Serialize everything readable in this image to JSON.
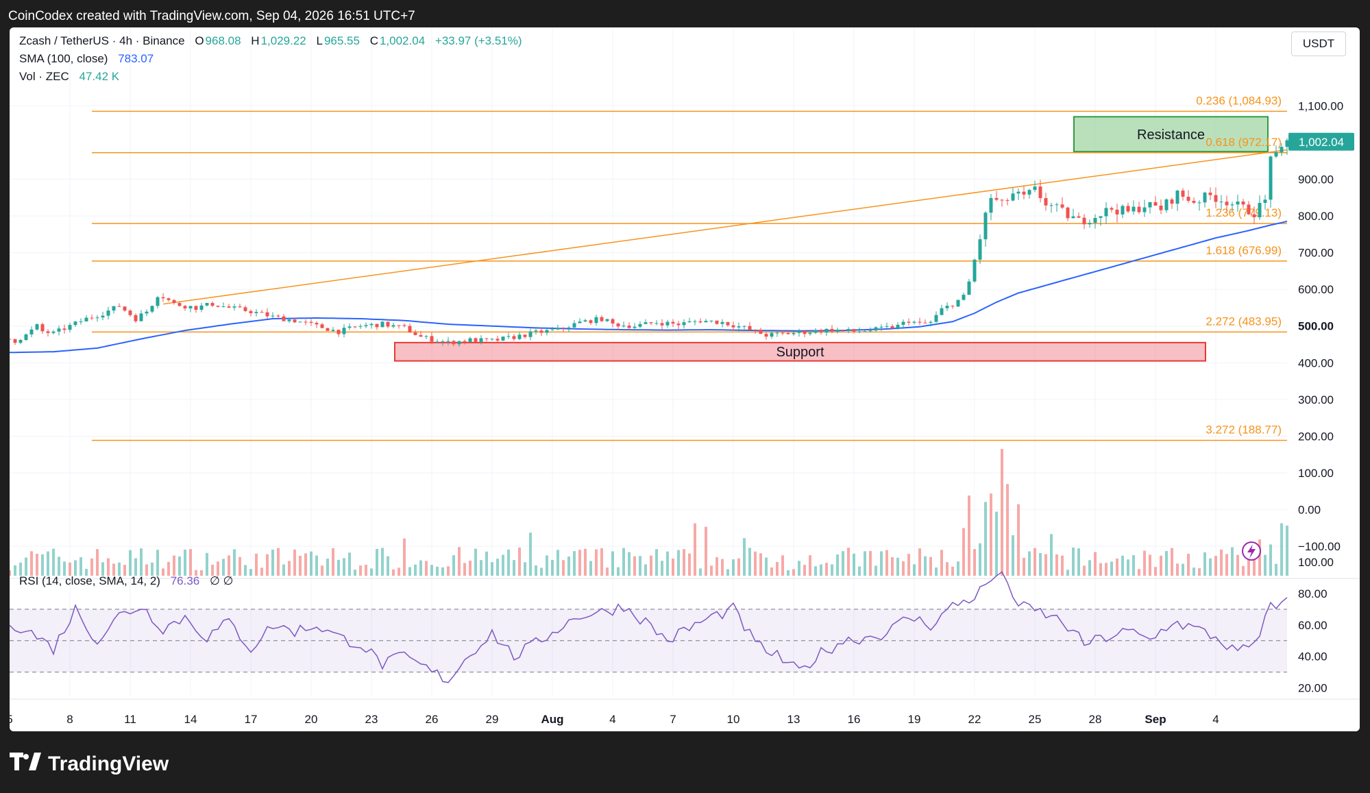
{
  "header": {
    "credit": "CoinCodex created with TradingView.com, Sep 04, 2026 16:51 UTC+7"
  },
  "legend": {
    "symbol": "Zcash / TetherUS · 4h · Binance",
    "open_label": "O",
    "open": "968.08",
    "high_label": "H",
    "high": "1,029.22",
    "low_label": "L",
    "low": "965.55",
    "close_label": "C",
    "close": "1,002.04",
    "change": "+33.97 (+3.51%)",
    "sma_label": "SMA (100, close)",
    "sma_value": "783.07",
    "vol_label": "Vol · ZEC",
    "vol_value": "47.42 K",
    "rsi_label": "RSI (14, close, SMA, 14, 2)",
    "rsi_value": "76.36",
    "rsi_extra": "∅ ∅"
  },
  "currency_button": "USDT",
  "footer": {
    "brand": "TradingView"
  },
  "colors": {
    "up": "#26a69a",
    "down": "#ef5350",
    "sma": "#2962ff",
    "fib": "#f7931a",
    "rsi": "#7e57c2",
    "support": "#f28b93",
    "resistance": "#81c784"
  },
  "chart_data": {
    "type": "candlestick",
    "title": "",
    "x_ticks": [
      "5",
      "8",
      "11",
      "14",
      "17",
      "20",
      "23",
      "26",
      "29",
      "Aug",
      "4",
      "7",
      "10",
      "13",
      "16",
      "19",
      "22",
      "25",
      "28",
      "Sep",
      "4"
    ],
    "y_ticks": [
      "1,100.00",
      "900.00",
      "800.00",
      "700.00",
      "600.00",
      "500.00",
      "400.00",
      "300.00",
      "200.00",
      "100.00",
      "0.00",
      "−100.00"
    ],
    "y_range": [
      -180,
      1220
    ],
    "last_price": "1,002.04",
    "price_path": [
      [
        0,
        465
      ],
      [
        1,
        460
      ],
      [
        3,
        475
      ],
      [
        5,
        500
      ],
      [
        6,
        485
      ],
      [
        8,
        480
      ],
      [
        11,
        500
      ],
      [
        14,
        520
      ],
      [
        17,
        535
      ],
      [
        20,
        555
      ],
      [
        23,
        520
      ],
      [
        24,
        530
      ],
      [
        25,
        540
      ],
      [
        26,
        560
      ],
      [
        27,
        585
      ],
      [
        28,
        580
      ],
      [
        30,
        560
      ],
      [
        34,
        550
      ],
      [
        37,
        560
      ],
      [
        40,
        550
      ],
      [
        44,
        540
      ],
      [
        48,
        525
      ],
      [
        52,
        515
      ],
      [
        56,
        500
      ],
      [
        60,
        485
      ],
      [
        64,
        500
      ],
      [
        68,
        505
      ],
      [
        72,
        495
      ],
      [
        75,
        470
      ],
      [
        80,
        455
      ],
      [
        84,
        462
      ],
      [
        88,
        460
      ],
      [
        92,
        470
      ],
      [
        96,
        482
      ],
      [
        100,
        490
      ],
      [
        104,
        510
      ],
      [
        108,
        520
      ],
      [
        110,
        505
      ],
      [
        114,
        500
      ],
      [
        118,
        510
      ],
      [
        122,
        505
      ],
      [
        126,
        515
      ],
      [
        130,
        510
      ],
      [
        134,
        495
      ],
      [
        138,
        475
      ],
      [
        142,
        480
      ],
      [
        146,
        485
      ],
      [
        150,
        490
      ],
      [
        154,
        485
      ],
      [
        158,
        490
      ],
      [
        162,
        500
      ],
      [
        164,
        515
      ],
      [
        166,
        505
      ],
      [
        168,
        510
      ],
      [
        170,
        545
      ],
      [
        172,
        560
      ],
      [
        174,
        580
      ],
      [
        175,
        620
      ],
      [
        176,
        680
      ],
      [
        177,
        740
      ],
      [
        178,
        800
      ],
      [
        179,
        850
      ],
      [
        181,
        830
      ],
      [
        183,
        860
      ],
      [
        185,
        850
      ],
      [
        187,
        870
      ],
      [
        189,
        835
      ],
      [
        192,
        810
      ],
      [
        195,
        785
      ],
      [
        198,
        800
      ],
      [
        201,
        820
      ],
      [
        204,
        810
      ],
      [
        207,
        830
      ],
      [
        210,
        820
      ],
      [
        213,
        860
      ],
      [
        216,
        840
      ],
      [
        219,
        855
      ],
      [
        222,
        840
      ],
      [
        225,
        820
      ],
      [
        227,
        810
      ],
      [
        229,
        840
      ],
      [
        230,
        970
      ],
      [
        231,
        960
      ],
      [
        232,
        975
      ],
      [
        233,
        1002
      ]
    ],
    "sma_path": [
      [
        0,
        428
      ],
      [
        8,
        430
      ],
      [
        16,
        440
      ],
      [
        24,
        465
      ],
      [
        32,
        488
      ],
      [
        40,
        505
      ],
      [
        48,
        520
      ],
      [
        56,
        522
      ],
      [
        64,
        520
      ],
      [
        72,
        515
      ],
      [
        80,
        505
      ],
      [
        88,
        500
      ],
      [
        96,
        495
      ],
      [
        104,
        492
      ],
      [
        112,
        490
      ],
      [
        120,
        489
      ],
      [
        128,
        490
      ],
      [
        136,
        488
      ],
      [
        144,
        487
      ],
      [
        152,
        488
      ],
      [
        160,
        492
      ],
      [
        166,
        498
      ],
      [
        172,
        512
      ],
      [
        176,
        535
      ],
      [
        180,
        565
      ],
      [
        184,
        590
      ],
      [
        190,
        615
      ],
      [
        196,
        640
      ],
      [
        202,
        665
      ],
      [
        208,
        690
      ],
      [
        214,
        715
      ],
      [
        220,
        740
      ],
      [
        226,
        760
      ],
      [
        230,
        775
      ],
      [
        233,
        785
      ]
    ],
    "fib_levels": [
      {
        "label": "0.236 (1,084.93)",
        "value": 1084.93
      },
      {
        "label": "0.618 (972.17)",
        "value": 972.17
      },
      {
        "label": "1.236 (779.13)",
        "value": 779.13
      },
      {
        "label": "1.618 (676.99)",
        "value": 676.99
      },
      {
        "label": "2.272 (483.95)",
        "value": 483.95
      },
      {
        "label": "3.272 (188.77)",
        "value": 188.77
      }
    ],
    "zones": [
      {
        "label": "Resistance",
        "from": 975,
        "to": 1070
      },
      {
        "label": "Support",
        "from": 405,
        "to": 455
      }
    ],
    "trendline": [
      [
        28,
        560
      ],
      [
        233,
        980
      ]
    ],
    "rsi": {
      "y_ticks": [
        "100.00",
        "80.00",
        "60.00",
        "40.00",
        "20.00"
      ],
      "range": [
        15,
        100
      ],
      "bands": [
        30,
        50,
        70
      ],
      "path": [
        [
          0,
          62
        ],
        [
          4,
          55
        ],
        [
          8,
          45
        ],
        [
          12,
          70
        ],
        [
          16,
          50
        ],
        [
          20,
          66
        ],
        [
          24,
          72
        ],
        [
          28,
          58
        ],
        [
          32,
          65
        ],
        [
          36,
          52
        ],
        [
          40,
          62
        ],
        [
          44,
          45
        ],
        [
          48,
          60
        ],
        [
          52,
          56
        ],
        [
          56,
          60
        ],
        [
          60,
          52
        ],
        [
          64,
          48
        ],
        [
          68,
          35
        ],
        [
          72,
          40
        ],
        [
          76,
          32
        ],
        [
          80,
          25
        ],
        [
          84,
          42
        ],
        [
          88,
          55
        ],
        [
          92,
          40
        ],
        [
          96,
          48
        ],
        [
          100,
          58
        ],
        [
          104,
          66
        ],
        [
          108,
          68
        ],
        [
          112,
          72
        ],
        [
          116,
          62
        ],
        [
          120,
          50
        ],
        [
          124,
          58
        ],
        [
          128,
          65
        ],
        [
          132,
          70
        ],
        [
          136,
          48
        ],
        [
          140,
          40
        ],
        [
          144,
          30
        ],
        [
          148,
          42
        ],
        [
          152,
          50
        ],
        [
          156,
          52
        ],
        [
          160,
          55
        ],
        [
          164,
          65
        ],
        [
          168,
          60
        ],
        [
          172,
          72
        ],
        [
          176,
          78
        ],
        [
          180,
          92
        ],
        [
          182,
          88
        ],
        [
          184,
          72
        ],
        [
          188,
          68
        ],
        [
          192,
          62
        ],
        [
          196,
          48
        ],
        [
          200,
          52
        ],
        [
          204,
          56
        ],
        [
          208,
          50
        ],
        [
          212,
          62
        ],
        [
          216,
          58
        ],
        [
          220,
          52
        ],
        [
          224,
          42
        ],
        [
          228,
          50
        ],
        [
          230,
          75
        ],
        [
          232,
          72
        ],
        [
          233,
          76
        ]
      ]
    }
  }
}
